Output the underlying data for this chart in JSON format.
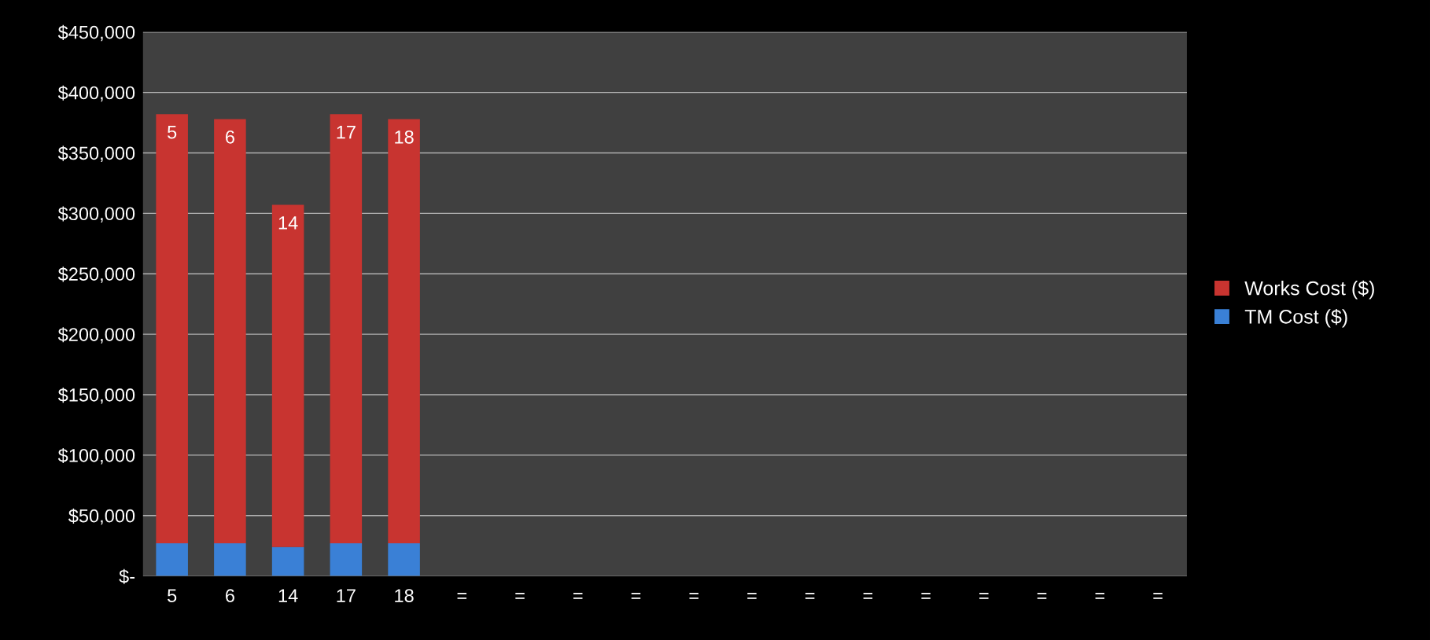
{
  "chart_data": {
    "type": "bar",
    "stacked": true,
    "categories": [
      "5",
      "6",
      "14",
      "17",
      "18",
      "=",
      "=",
      "=",
      "=",
      "=",
      "=",
      "=",
      "=",
      "=",
      "=",
      "=",
      "=",
      "="
    ],
    "series": [
      {
        "name": "TM Cost ($)",
        "color": "#3a80d6",
        "values": [
          27000,
          27000,
          24000,
          27000,
          27000,
          null,
          null,
          null,
          null,
          null,
          null,
          null,
          null,
          null,
          null,
          null,
          null,
          null
        ]
      },
      {
        "name": "Works Cost ($)",
        "color": "#c83430",
        "values": [
          355000,
          351000,
          283000,
          355000,
          351000,
          null,
          null,
          null,
          null,
          null,
          null,
          null,
          null,
          null,
          null,
          null,
          null,
          null
        ]
      }
    ],
    "annotations": [
      {
        "text": "5",
        "x": "5",
        "y": 382000
      },
      {
        "text": "6",
        "x": "6",
        "y": 378000
      },
      {
        "text": "14",
        "x": "14",
        "y": 307000
      },
      {
        "text": "17",
        "x": "17",
        "y": 382000
      },
      {
        "text": "18",
        "x": "18",
        "y": 378000
      }
    ],
    "ylim": [
      0,
      450000
    ],
    "yticks": [
      {
        "value": 0,
        "label": "$-"
      },
      {
        "value": 50000,
        "label": "$50,000"
      },
      {
        "value": 100000,
        "label": "$100,000"
      },
      {
        "value": 150000,
        "label": "$150,000"
      },
      {
        "value": 200000,
        "label": "$200,000"
      },
      {
        "value": 250000,
        "label": "$250,000"
      },
      {
        "value": 300000,
        "label": "$300,000"
      },
      {
        "value": 350000,
        "label": "$350,000"
      },
      {
        "value": 400000,
        "label": "$400,000"
      },
      {
        "value": 450000,
        "label": "$450,000"
      }
    ],
    "grid": "y",
    "legend": "right"
  }
}
